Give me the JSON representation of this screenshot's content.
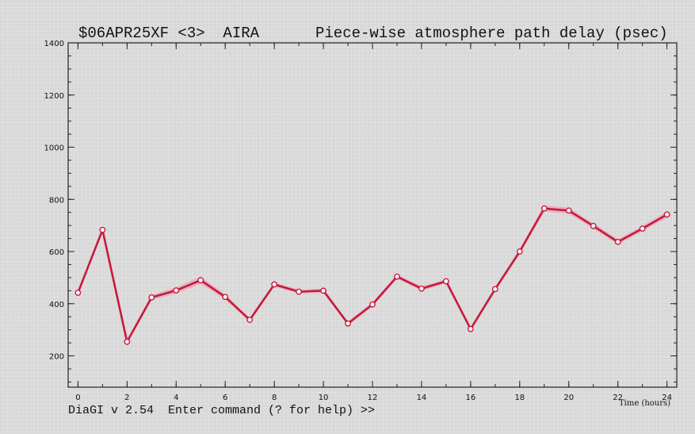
{
  "header": {
    "experiment": "$06APR25XF <3>  AIRA",
    "title": "Piece-wise atmosphere path delay (psec)"
  },
  "footer": {
    "command_prompt": "DiaGI v 2.54  Enter command (? for help) >>"
  },
  "chart_data": {
    "type": "line",
    "title": "Piece-wise atmosphere path delay (psec)",
    "xlabel": "Time (hours)",
    "ylabel": "",
    "xlim": [
      -0.4,
      24.4
    ],
    "ylim": [
      80,
      1400
    ],
    "x_ticks": [
      0,
      2,
      4,
      6,
      8,
      10,
      12,
      14,
      16,
      18,
      20,
      22,
      24
    ],
    "y_ticks": [
      200,
      400,
      600,
      800,
      1000,
      1200,
      1400
    ],
    "x_minor_step": 1,
    "y_minor_step": 50,
    "grid": false,
    "legend": "none",
    "line_color": "#c8193c",
    "error_band_color": "#e9a6b6",
    "marker_fill": "#ffffff",
    "series": [
      {
        "x": [
          0,
          1,
          2,
          3,
          4,
          5,
          6,
          7,
          8,
          9,
          10,
          11,
          12,
          13,
          14,
          15,
          16,
          17,
          18,
          19,
          20,
          21,
          22,
          23,
          24
        ],
        "values": [
          442,
          683,
          254,
          424,
          451,
          490,
          426,
          338,
          474,
          446,
          450,
          324,
          397,
          504,
          458,
          486,
          303,
          456,
          600,
          765,
          757,
          698,
          637,
          688,
          742
        ],
        "errors": [
          6,
          8,
          8,
          10,
          12,
          14,
          10,
          8,
          8,
          8,
          8,
          8,
          8,
          8,
          8,
          8,
          8,
          8,
          10,
          12,
          12,
          10,
          10,
          10,
          12
        ]
      }
    ]
  }
}
